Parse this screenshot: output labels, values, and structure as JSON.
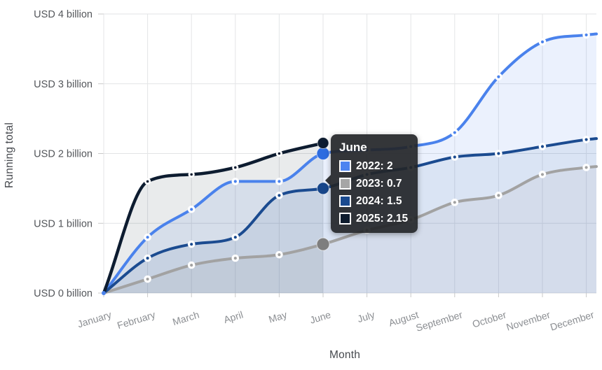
{
  "chart_data": {
    "type": "line",
    "title": "",
    "xlabel": "Month",
    "ylabel": "Running total",
    "categories": [
      "January",
      "February",
      "March",
      "April",
      "May",
      "June",
      "July",
      "August",
      "September",
      "October",
      "November",
      "December"
    ],
    "ylim": [
      0,
      4
    ],
    "y_ticks": [
      0,
      1,
      2,
      3,
      4
    ],
    "y_tick_labels": [
      "USD 0 billion",
      "USD 1 billion",
      "USD 2 billion",
      "USD 3 billion",
      "USD 4 billion"
    ],
    "grid": true,
    "series": [
      {
        "name": "2022",
        "color": "#4a82ec",
        "hover_dot_color": "#2d6ce0",
        "values": [
          0,
          0.8,
          1.2,
          1.6,
          1.6,
          2,
          2.05,
          2.1,
          2.3,
          3.1,
          3.6,
          3.7
        ]
      },
      {
        "name": "2023",
        "color": "#a2a2a2",
        "hover_dot_color": "#7e7e7e",
        "values": [
          0,
          0.2,
          0.4,
          0.5,
          0.55,
          0.7,
          0.9,
          1.05,
          1.3,
          1.4,
          1.7,
          1.8
        ]
      },
      {
        "name": "2024",
        "color": "#1b4b90",
        "hover_dot_color": "#17468a",
        "values": [
          0,
          0.5,
          0.7,
          0.8,
          1.4,
          1.5,
          1.7,
          1.8,
          1.95,
          2,
          2.1,
          2.2
        ]
      },
      {
        "name": "2025",
        "color": "#0d1c30",
        "hover_dot_color": "#0d1c30",
        "values": [
          0,
          1.6,
          1.7,
          1.8,
          2,
          2.15
        ]
      }
    ],
    "hover": {
      "month_index": 5
    },
    "tooltip": {
      "title": "June",
      "rows": [
        {
          "label": "2022",
          "value": "2",
          "color": "#4d84f0"
        },
        {
          "label": "2023",
          "value": "0.7",
          "color": "#a6a6a6"
        },
        {
          "label": "2024",
          "value": "1.5",
          "color": "#1b4b90"
        },
        {
          "label": "2025",
          "value": "2.15",
          "color": "#0e1c2e"
        }
      ]
    }
  }
}
